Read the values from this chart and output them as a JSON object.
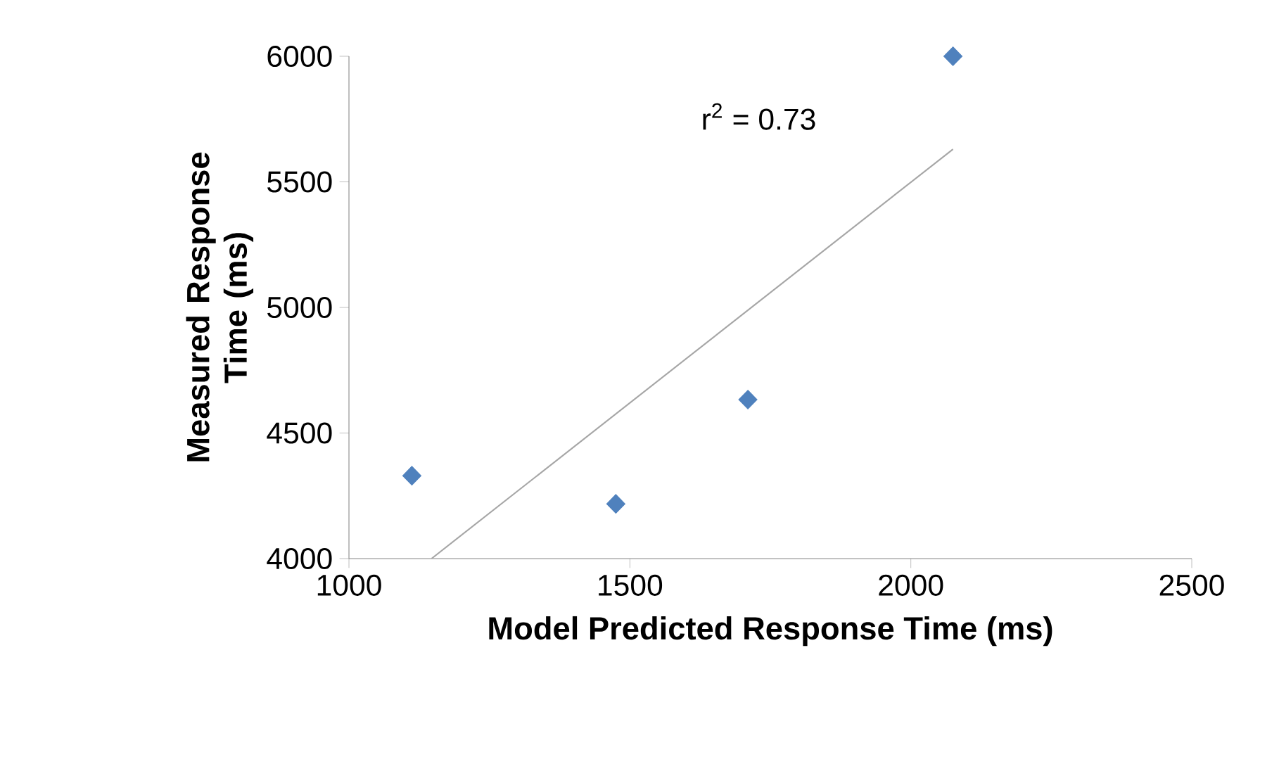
{
  "chart_data": {
    "type": "scatter",
    "xlabel": "Model Predicted Response Time (ms)",
    "ylabel": "Measured Response Time (ms)",
    "xlim": [
      1000,
      2500
    ],
    "xticks": [
      1000,
      1500,
      2000,
      2500
    ],
    "ylim": [
      4000,
      6000
    ],
    "yticks": [
      4000,
      4500,
      5000,
      5500,
      6000
    ],
    "marker": "diamond",
    "series": [
      {
        "color": "#4f81bd",
        "x": [
          1112,
          1475,
          1710,
          2075
        ],
        "values": [
          4330,
          4218,
          4633,
          6000
        ]
      },
      {
        "type": "line",
        "color": "#a6a6a6",
        "marker": "none",
        "x": [
          1147,
          2075
        ],
        "values": [
          4000,
          5630
        ]
      }
    ],
    "annotations": [
      "r$^{2}$ = 0.73"
    ]
  }
}
